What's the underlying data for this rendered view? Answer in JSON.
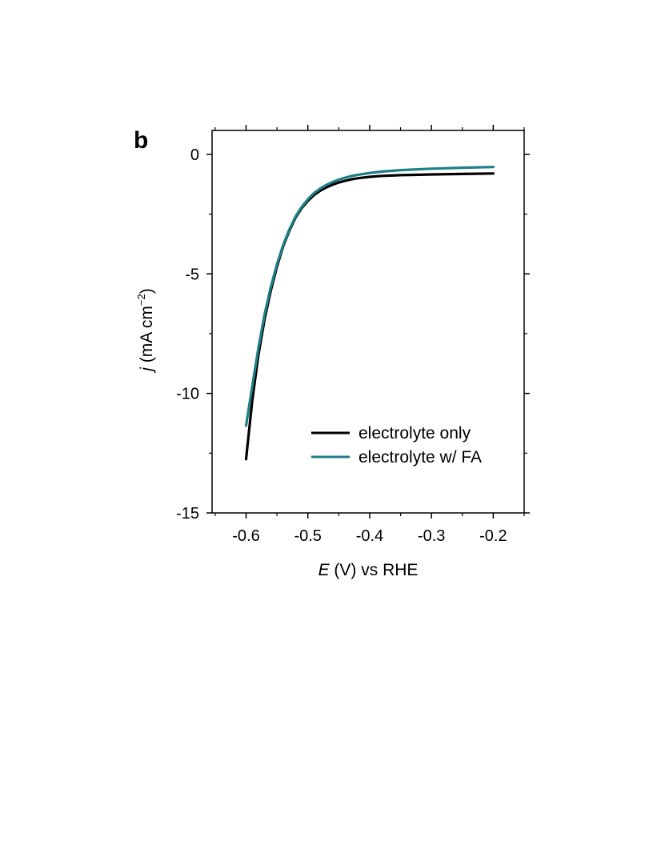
{
  "panel_label": "b",
  "chart_data": {
    "type": "line",
    "xlabel": {
      "italic": "E",
      "rest": " (V) vs RHE"
    },
    "ylabel": {
      "italic": "j",
      "base": " (mA cm",
      "sup": "−2",
      "close": ")"
    },
    "xlim": [
      -0.655,
      -0.15
    ],
    "ylim": [
      -15,
      1
    ],
    "x_ticks": [
      -0.6,
      -0.5,
      -0.4,
      -0.3,
      -0.2
    ],
    "x_tick_labels": [
      "-0.6",
      "-0.5",
      "-0.4",
      "-0.3",
      "-0.2"
    ],
    "y_ticks": [
      0,
      -5,
      -10,
      -15
    ],
    "y_tick_labels": [
      "0",
      "-5",
      "-10",
      "-15"
    ],
    "legend_position": "lower-right",
    "grid": false,
    "series": [
      {
        "name": "electrolyte only",
        "color": "#000000",
        "x": [
          -0.6,
          -0.59,
          -0.58,
          -0.57,
          -0.56,
          -0.55,
          -0.54,
          -0.53,
          -0.52,
          -0.51,
          -0.5,
          -0.49,
          -0.48,
          -0.47,
          -0.46,
          -0.45,
          -0.44,
          -0.43,
          -0.42,
          -0.4,
          -0.38,
          -0.35,
          -0.3,
          -0.25,
          -0.2
        ],
        "y": [
          -12.75,
          -10.3,
          -8.4,
          -6.9,
          -5.7,
          -4.7,
          -3.85,
          -3.2,
          -2.65,
          -2.25,
          -1.95,
          -1.7,
          -1.52,
          -1.38,
          -1.27,
          -1.18,
          -1.11,
          -1.05,
          -1.0,
          -0.94,
          -0.9,
          -0.87,
          -0.84,
          -0.82,
          -0.8
        ]
      },
      {
        "name": "electrolyte w/ FA",
        "color": "#1f7f86",
        "x": [
          -0.6,
          -0.59,
          -0.58,
          -0.57,
          -0.56,
          -0.55,
          -0.54,
          -0.53,
          -0.52,
          -0.51,
          -0.5,
          -0.49,
          -0.48,
          -0.47,
          -0.46,
          -0.45,
          -0.44,
          -0.43,
          -0.42,
          -0.4,
          -0.38,
          -0.35,
          -0.3,
          -0.25,
          -0.2
        ],
        "y": [
          -11.35,
          -9.7,
          -8.1,
          -6.7,
          -5.55,
          -4.6,
          -3.8,
          -3.15,
          -2.6,
          -2.2,
          -1.88,
          -1.62,
          -1.43,
          -1.28,
          -1.16,
          -1.06,
          -0.98,
          -0.91,
          -0.86,
          -0.78,
          -0.72,
          -0.66,
          -0.6,
          -0.56,
          -0.53
        ]
      }
    ]
  }
}
